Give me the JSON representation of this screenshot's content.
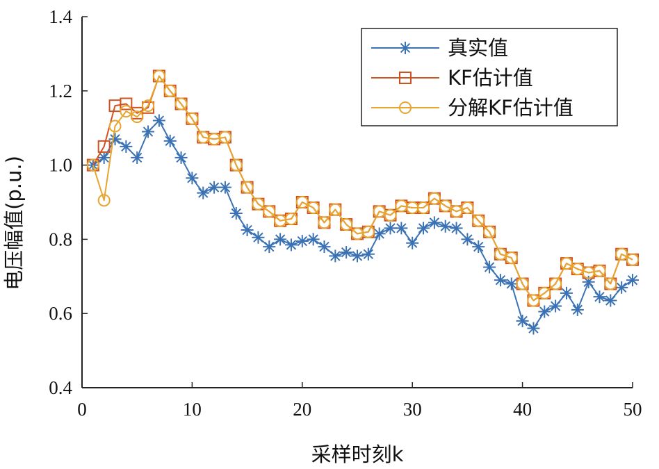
{
  "chart_data": {
    "type": "line",
    "xlabel": "采样时刻k",
    "ylabel": "电压幅值(p.u.)",
    "xlim": [
      0,
      50
    ],
    "ylim": [
      0.4,
      1.4
    ],
    "xticks": [
      0,
      10,
      20,
      30,
      40,
      50
    ],
    "yticks": [
      0.4,
      0.6,
      0.8,
      1.0,
      1.2,
      1.4
    ],
    "xtick_labels": [
      "0",
      "10",
      "20",
      "30",
      "40",
      "50"
    ],
    "ytick_labels": [
      "0.4",
      "0.6",
      "0.8",
      "1.0",
      "1.2",
      "1.4"
    ],
    "grid": false,
    "legend_position": "top-right",
    "x": [
      1,
      2,
      3,
      4,
      5,
      6,
      7,
      8,
      9,
      10,
      11,
      12,
      13,
      14,
      15,
      16,
      17,
      18,
      19,
      20,
      21,
      22,
      23,
      24,
      25,
      26,
      27,
      28,
      29,
      30,
      31,
      32,
      33,
      34,
      35,
      36,
      37,
      38,
      39,
      40,
      41,
      42,
      43,
      44,
      45,
      46,
      47,
      48,
      49,
      50
    ],
    "series": [
      {
        "name": "真实值",
        "color": "#3a72b4",
        "marker": "asterisk",
        "values": [
          1.0,
          1.02,
          1.07,
          1.05,
          1.02,
          1.09,
          1.12,
          1.065,
          1.02,
          0.965,
          0.925,
          0.94,
          0.94,
          0.87,
          0.825,
          0.805,
          0.78,
          0.8,
          0.785,
          0.795,
          0.8,
          0.78,
          0.755,
          0.765,
          0.755,
          0.76,
          0.815,
          0.83,
          0.83,
          0.79,
          0.83,
          0.845,
          0.835,
          0.83,
          0.8,
          0.78,
          0.725,
          0.69,
          0.68,
          0.58,
          0.56,
          0.605,
          0.62,
          0.655,
          0.61,
          0.685,
          0.645,
          0.635,
          0.67,
          0.69
        ]
      },
      {
        "name": "KF估计值",
        "color": "#d2521f",
        "marker": "square",
        "values": [
          1.0,
          1.05,
          1.16,
          1.165,
          1.14,
          1.155,
          1.24,
          1.2,
          1.165,
          1.125,
          1.075,
          1.07,
          1.075,
          1.0,
          0.94,
          0.895,
          0.875,
          0.85,
          0.855,
          0.9,
          0.885,
          0.845,
          0.88,
          0.84,
          0.815,
          0.82,
          0.875,
          0.865,
          0.89,
          0.885,
          0.885,
          0.91,
          0.89,
          0.875,
          0.885,
          0.85,
          0.82,
          0.76,
          0.75,
          0.68,
          0.635,
          0.655,
          0.68,
          0.735,
          0.72,
          0.71,
          0.715,
          0.68,
          0.76,
          0.745
        ]
      },
      {
        "name": "分解KF估计值",
        "color": "#e6a52f",
        "marker": "circle",
        "values": [
          1.0,
          0.905,
          1.105,
          1.145,
          1.13,
          1.16,
          1.24,
          1.2,
          1.165,
          1.125,
          1.075,
          1.07,
          1.075,
          1.0,
          0.94,
          0.895,
          0.875,
          0.85,
          0.855,
          0.9,
          0.885,
          0.845,
          0.88,
          0.84,
          0.815,
          0.82,
          0.875,
          0.865,
          0.89,
          0.885,
          0.885,
          0.91,
          0.89,
          0.875,
          0.885,
          0.85,
          0.82,
          0.76,
          0.75,
          0.68,
          0.635,
          0.655,
          0.68,
          0.735,
          0.72,
          0.71,
          0.715,
          0.68,
          0.76,
          0.745
        ]
      }
    ]
  }
}
